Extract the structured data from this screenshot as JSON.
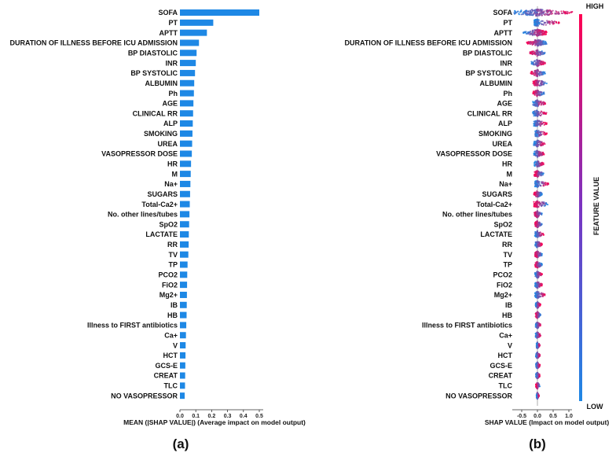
{
  "colors": {
    "bar": "#1e88e5",
    "low": "#1e88e5",
    "high": "#ff0052",
    "mid": "#7a33c2"
  },
  "chart_data": [
    {
      "type": "bar",
      "orientation": "horizontal",
      "panel": "(a)",
      "xlabel": "MEAN (|SHAP VALUE|)  (Average impact on model output)",
      "xlim": [
        0,
        0.5
      ],
      "xticks": [
        "0.0",
        "0.1",
        "0.2",
        "0.3",
        "0.4",
        "0.5"
      ],
      "categories": [
        "SOFA",
        "PT",
        "APTT",
        "DURATION OF ILLNESS BEFORE ICU ADMISSION",
        "BP DIASTOLIC",
        "INR",
        "BP SYSTOLIC",
        "ALBUMIN",
        "Ph",
        "AGE",
        "CLINICAL RR",
        "ALP",
        "SMOKING",
        "UREA",
        "VASOPRESSOR DOSE",
        "HR",
        "M",
        "Na+",
        "SUGARS",
        "Total-Ca2+",
        "No. other lines/tubes",
        "SpO2",
        "LACTATE",
        "RR",
        "TV",
        "TP",
        "PCO2",
        "FiO2",
        "Mg2+",
        "IB",
        "HB",
        "Illness to FIRST antibiotics",
        "Ca+",
        "V",
        "HCT",
        "GCS-E",
        "CREAT",
        "TLC",
        "NO VASOPRESSOR"
      ],
      "values": [
        0.5,
        0.21,
        0.17,
        0.12,
        0.105,
        0.1,
        0.095,
        0.09,
        0.088,
        0.085,
        0.083,
        0.081,
        0.079,
        0.077,
        0.075,
        0.07,
        0.068,
        0.066,
        0.064,
        0.062,
        0.06,
        0.058,
        0.056,
        0.055,
        0.053,
        0.048,
        0.046,
        0.045,
        0.044,
        0.043,
        0.042,
        0.04,
        0.038,
        0.036,
        0.035,
        0.034,
        0.033,
        0.032,
        0.03
      ]
    },
    {
      "type": "scatter",
      "subtype": "beeswarm",
      "panel": "(b)",
      "xlabel": "SHAP VALUE (Impact on model output)",
      "xlim": [
        -0.8,
        1.25
      ],
      "xticks": [
        "-0.5",
        "0.0",
        "0.5",
        "1.0"
      ],
      "xtick_values": [
        -0.5,
        0,
        0.5,
        1.0
      ],
      "categories": [
        "SOFA",
        "PT",
        "APTT",
        "DURATION OF ILLNESS BEFORE ICU ADMISSION",
        "BP DIASTOLIC",
        "INR",
        "BP SYSTOLIC",
        "ALBUMIN",
        "Ph",
        "AGE",
        "CLINICAL RR",
        "ALP",
        "SMOKING",
        "UREA",
        "VASOPRESSOR DOSE",
        "HR",
        "M",
        "Na+",
        "SUGARS",
        "Total-Ca2+",
        "No. other lines/tubes",
        "SpO2",
        "LACTATE",
        "RR",
        "TV",
        "TP",
        "PCO2",
        "FiO2",
        "Mg2+",
        "IB",
        "HB",
        "Illness to FIRST antibiotics",
        "Ca+",
        "V",
        "HCT",
        "GCS-E",
        "CREAT",
        "TLC",
        "NO VASOPRESSOR"
      ],
      "spread_min": [
        -0.75,
        -0.1,
        -0.45,
        -0.35,
        -0.25,
        -0.2,
        -0.22,
        -0.15,
        -0.15,
        -0.15,
        -0.15,
        -0.12,
        -0.08,
        -0.12,
        -0.12,
        -0.1,
        -0.1,
        -0.08,
        -0.12,
        -0.12,
        -0.1,
        -0.08,
        -0.08,
        -0.08,
        -0.08,
        -0.08,
        -0.08,
        -0.08,
        -0.08,
        -0.06,
        -0.06,
        -0.06,
        -0.06,
        -0.03,
        -0.05,
        -0.05,
        -0.05,
        -0.05,
        -0.03
      ],
      "spread_max": [
        1.15,
        0.7,
        0.3,
        0.3,
        0.25,
        0.25,
        0.25,
        0.3,
        0.22,
        0.25,
        0.3,
        0.3,
        0.3,
        0.25,
        0.22,
        0.2,
        0.2,
        0.35,
        0.15,
        0.35,
        0.15,
        0.15,
        0.2,
        0.15,
        0.15,
        0.15,
        0.15,
        0.15,
        0.25,
        0.1,
        0.1,
        0.1,
        0.1,
        0.08,
        0.08,
        0.08,
        0.08,
        0.08,
        0.05
      ],
      "high_side": [
        "right",
        "right",
        "right",
        "left",
        "left",
        "right",
        "left",
        "left",
        "left",
        "right",
        "right",
        "right",
        "right",
        "right",
        "right",
        "right",
        "left",
        "right",
        "left",
        "left",
        "left",
        "left",
        "right",
        "right",
        "left",
        "left",
        "right",
        "right",
        "right",
        "right",
        "left",
        "right",
        "right",
        "right",
        "right",
        "right",
        "right",
        "left",
        "right"
      ],
      "colorbar": {
        "label": "FEATURE VALUE",
        "high": "HIGH",
        "low": "LOW"
      }
    }
  ]
}
